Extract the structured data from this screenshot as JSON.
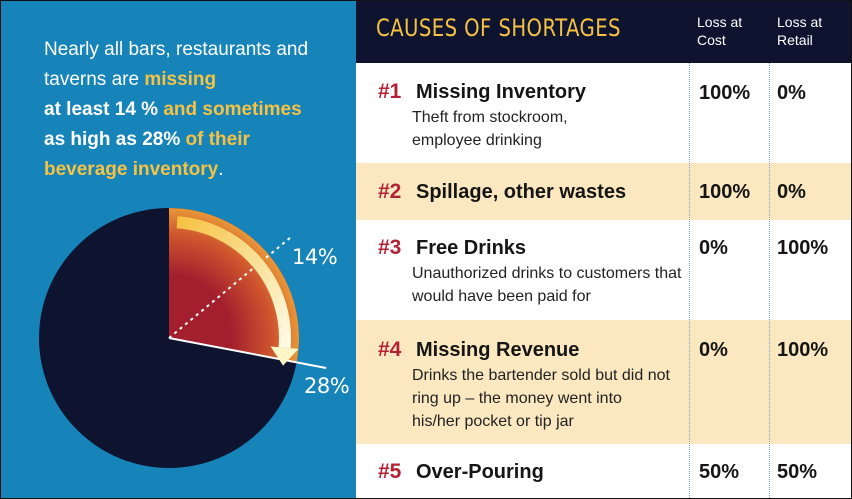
{
  "headline": {
    "part1": "Nearly all bars, restaurants and taverns are ",
    "part2": "missing",
    "part3": "at least 14 %",
    "part4": " and sometimes",
    "part5": "as high as 28%",
    "part6": " of their",
    "part7": "beverage inventory",
    "part8": "."
  },
  "chart_data": {
    "type": "pie",
    "slices": [
      {
        "label": "14%",
        "value": 14
      },
      {
        "label": "28%",
        "value": 28
      }
    ],
    "colors": {
      "pie_body": "#0e1330",
      "slice_inner": "#a41f2e",
      "slice_outer": "#f0a23a",
      "arrow": "#fff6c8"
    }
  },
  "table": {
    "title": "CAUSES OF SHORTAGES",
    "col_cost": "Loss at Cost",
    "col_retail": "Loss at Retail",
    "rows": [
      {
        "rank": "#1",
        "cause": "Missing Inventory",
        "desc": "Theft from stockroom, employee drinking",
        "cost": "100%",
        "retail": "0%"
      },
      {
        "rank": "#2",
        "cause": "Spillage, other wastes",
        "desc": "",
        "cost": "100%",
        "retail": "0%"
      },
      {
        "rank": "#3",
        "cause": "Free Drinks",
        "desc": "Unauthorized drinks to customers that would have been paid for",
        "cost": "0%",
        "retail": "100%"
      },
      {
        "rank": "#4",
        "cause": "Missing Revenue",
        "desc": "Drinks the bartender sold but did not ring up – the money went into his/her pocket or tip jar",
        "cost": "0%",
        "retail": "100%"
      },
      {
        "rank": "#5",
        "cause": "Over-Pouring",
        "desc": "",
        "cost": "50%",
        "retail": "50%"
      }
    ]
  },
  "colors": {
    "panel_blue": "#1684b9",
    "navy": "#0e1330",
    "accent_yellow": "#f6c243",
    "rank_red": "#b42134",
    "row_shade": "#fbe8c0"
  }
}
